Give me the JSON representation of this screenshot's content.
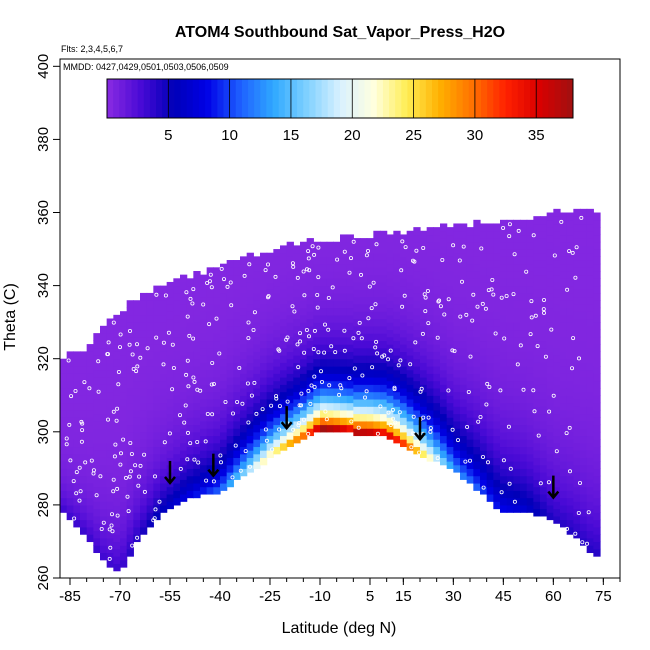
{
  "chart_data": {
    "type": "heatmap",
    "title": "ATOM4 Southbound Sat_Vapor_Press_H2O",
    "flights_note": "Flts: 2,3,4,5,6,7",
    "dates_note": "MMDD: 0427,0429,0501,0503,0506,0509",
    "xlabel": "Latitude (deg N)",
    "ylabel": "Theta (C)",
    "xlim": [
      -88,
      80
    ],
    "ylim": [
      260,
      402
    ],
    "x_ticks": [
      -85,
      -70,
      -55,
      -40,
      -25,
      -10,
      5,
      15,
      30,
      45,
      60,
      75
    ],
    "x_tick_labels": [
      "-85",
      "-70",
      "-55",
      "-40",
      "-25",
      "-10",
      "5",
      "15",
      "30",
      "45",
      "60",
      "75"
    ],
    "y_ticks": [
      260,
      280,
      300,
      320,
      340,
      360,
      380,
      400
    ],
    "y_tick_labels": [
      "260",
      "280",
      "300",
      "320",
      "340",
      "360",
      "380",
      "400"
    ],
    "colorbar": {
      "range": [
        0,
        38
      ],
      "ticks": [
        5,
        10,
        15,
        20,
        25,
        30,
        35
      ],
      "tick_labels": [
        "5",
        "10",
        "15",
        "20",
        "25",
        "30",
        "35"
      ],
      "colors": [
        "#8a2be2",
        "#4a0ad6",
        "#0000b8",
        "#0000e6",
        "#1e5fff",
        "#2fa8ff",
        "#7fd1ff",
        "#d8f1ff",
        "#ffffe0",
        "#ffee55",
        "#ffb000",
        "#ff7000",
        "#ff2000",
        "#d80000",
        "#a01010"
      ]
    },
    "coverage_upper_theta": [
      {
        "lat": -87,
        "theta": 320
      },
      {
        "lat": -80,
        "theta": 322
      },
      {
        "lat": -75,
        "theta": 328
      },
      {
        "lat": -65,
        "theta": 336
      },
      {
        "lat": -55,
        "theta": 340
      },
      {
        "lat": -45,
        "theta": 343
      },
      {
        "lat": -35,
        "theta": 346
      },
      {
        "lat": -25,
        "theta": 349
      },
      {
        "lat": -15,
        "theta": 351
      },
      {
        "lat": -5,
        "theta": 352
      },
      {
        "lat": 5,
        "theta": 353
      },
      {
        "lat": 15,
        "theta": 354
      },
      {
        "lat": 25,
        "theta": 355
      },
      {
        "lat": 35,
        "theta": 356
      },
      {
        "lat": 45,
        "theta": 357
      },
      {
        "lat": 55,
        "theta": 358
      },
      {
        "lat": 60,
        "theta": 360
      },
      {
        "lat": 72,
        "theta": 360
      }
    ],
    "coverage_lower_theta": [
      {
        "lat": -87,
        "theta": 278
      },
      {
        "lat": -80,
        "theta": 272
      },
      {
        "lat": -75,
        "theta": 265
      },
      {
        "lat": -70,
        "theta": 262
      },
      {
        "lat": -65,
        "theta": 270
      },
      {
        "lat": -58,
        "theta": 278
      },
      {
        "lat": -50,
        "theta": 282
      },
      {
        "lat": -40,
        "theta": 284
      },
      {
        "lat": -30,
        "theta": 290
      },
      {
        "lat": -20,
        "theta": 296
      },
      {
        "lat": -10,
        "theta": 301
      },
      {
        "lat": 0,
        "theta": 300
      },
      {
        "lat": 10,
        "theta": 299
      },
      {
        "lat": 20,
        "theta": 294
      },
      {
        "lat": 30,
        "theta": 290
      },
      {
        "lat": 38,
        "theta": 284
      },
      {
        "lat": 44,
        "theta": 278
      },
      {
        "lat": 52,
        "theta": 279
      },
      {
        "lat": 60,
        "theta": 276
      },
      {
        "lat": 66,
        "theta": 272
      },
      {
        "lat": 72,
        "theta": 266
      }
    ],
    "peak_values": [
      {
        "lat": -25,
        "value": 22
      },
      {
        "lat": -15,
        "value": 28
      },
      {
        "lat": -10,
        "value": 34
      },
      {
        "lat": -5,
        "value": 34
      },
      {
        "lat": 0,
        "value": 33
      },
      {
        "lat": 5,
        "value": 34
      },
      {
        "lat": 10,
        "value": 33
      },
      {
        "lat": 15,
        "value": 30
      },
      {
        "lat": 20,
        "value": 24
      },
      {
        "lat": 30,
        "value": 12
      },
      {
        "lat": 45,
        "value": 8
      },
      {
        "lat": 60,
        "value": 4
      },
      {
        "lat": -40,
        "value": 10
      },
      {
        "lat": -55,
        "value": 6
      },
      {
        "lat": -70,
        "value": 3
      }
    ],
    "arrows": [
      {
        "lat": -55,
        "theta": 286
      },
      {
        "lat": -42,
        "theta": 288
      },
      {
        "lat": -20,
        "theta": 301
      },
      {
        "lat": 20,
        "theta": 298
      },
      {
        "lat": 60,
        "theta": 282
      }
    ]
  }
}
